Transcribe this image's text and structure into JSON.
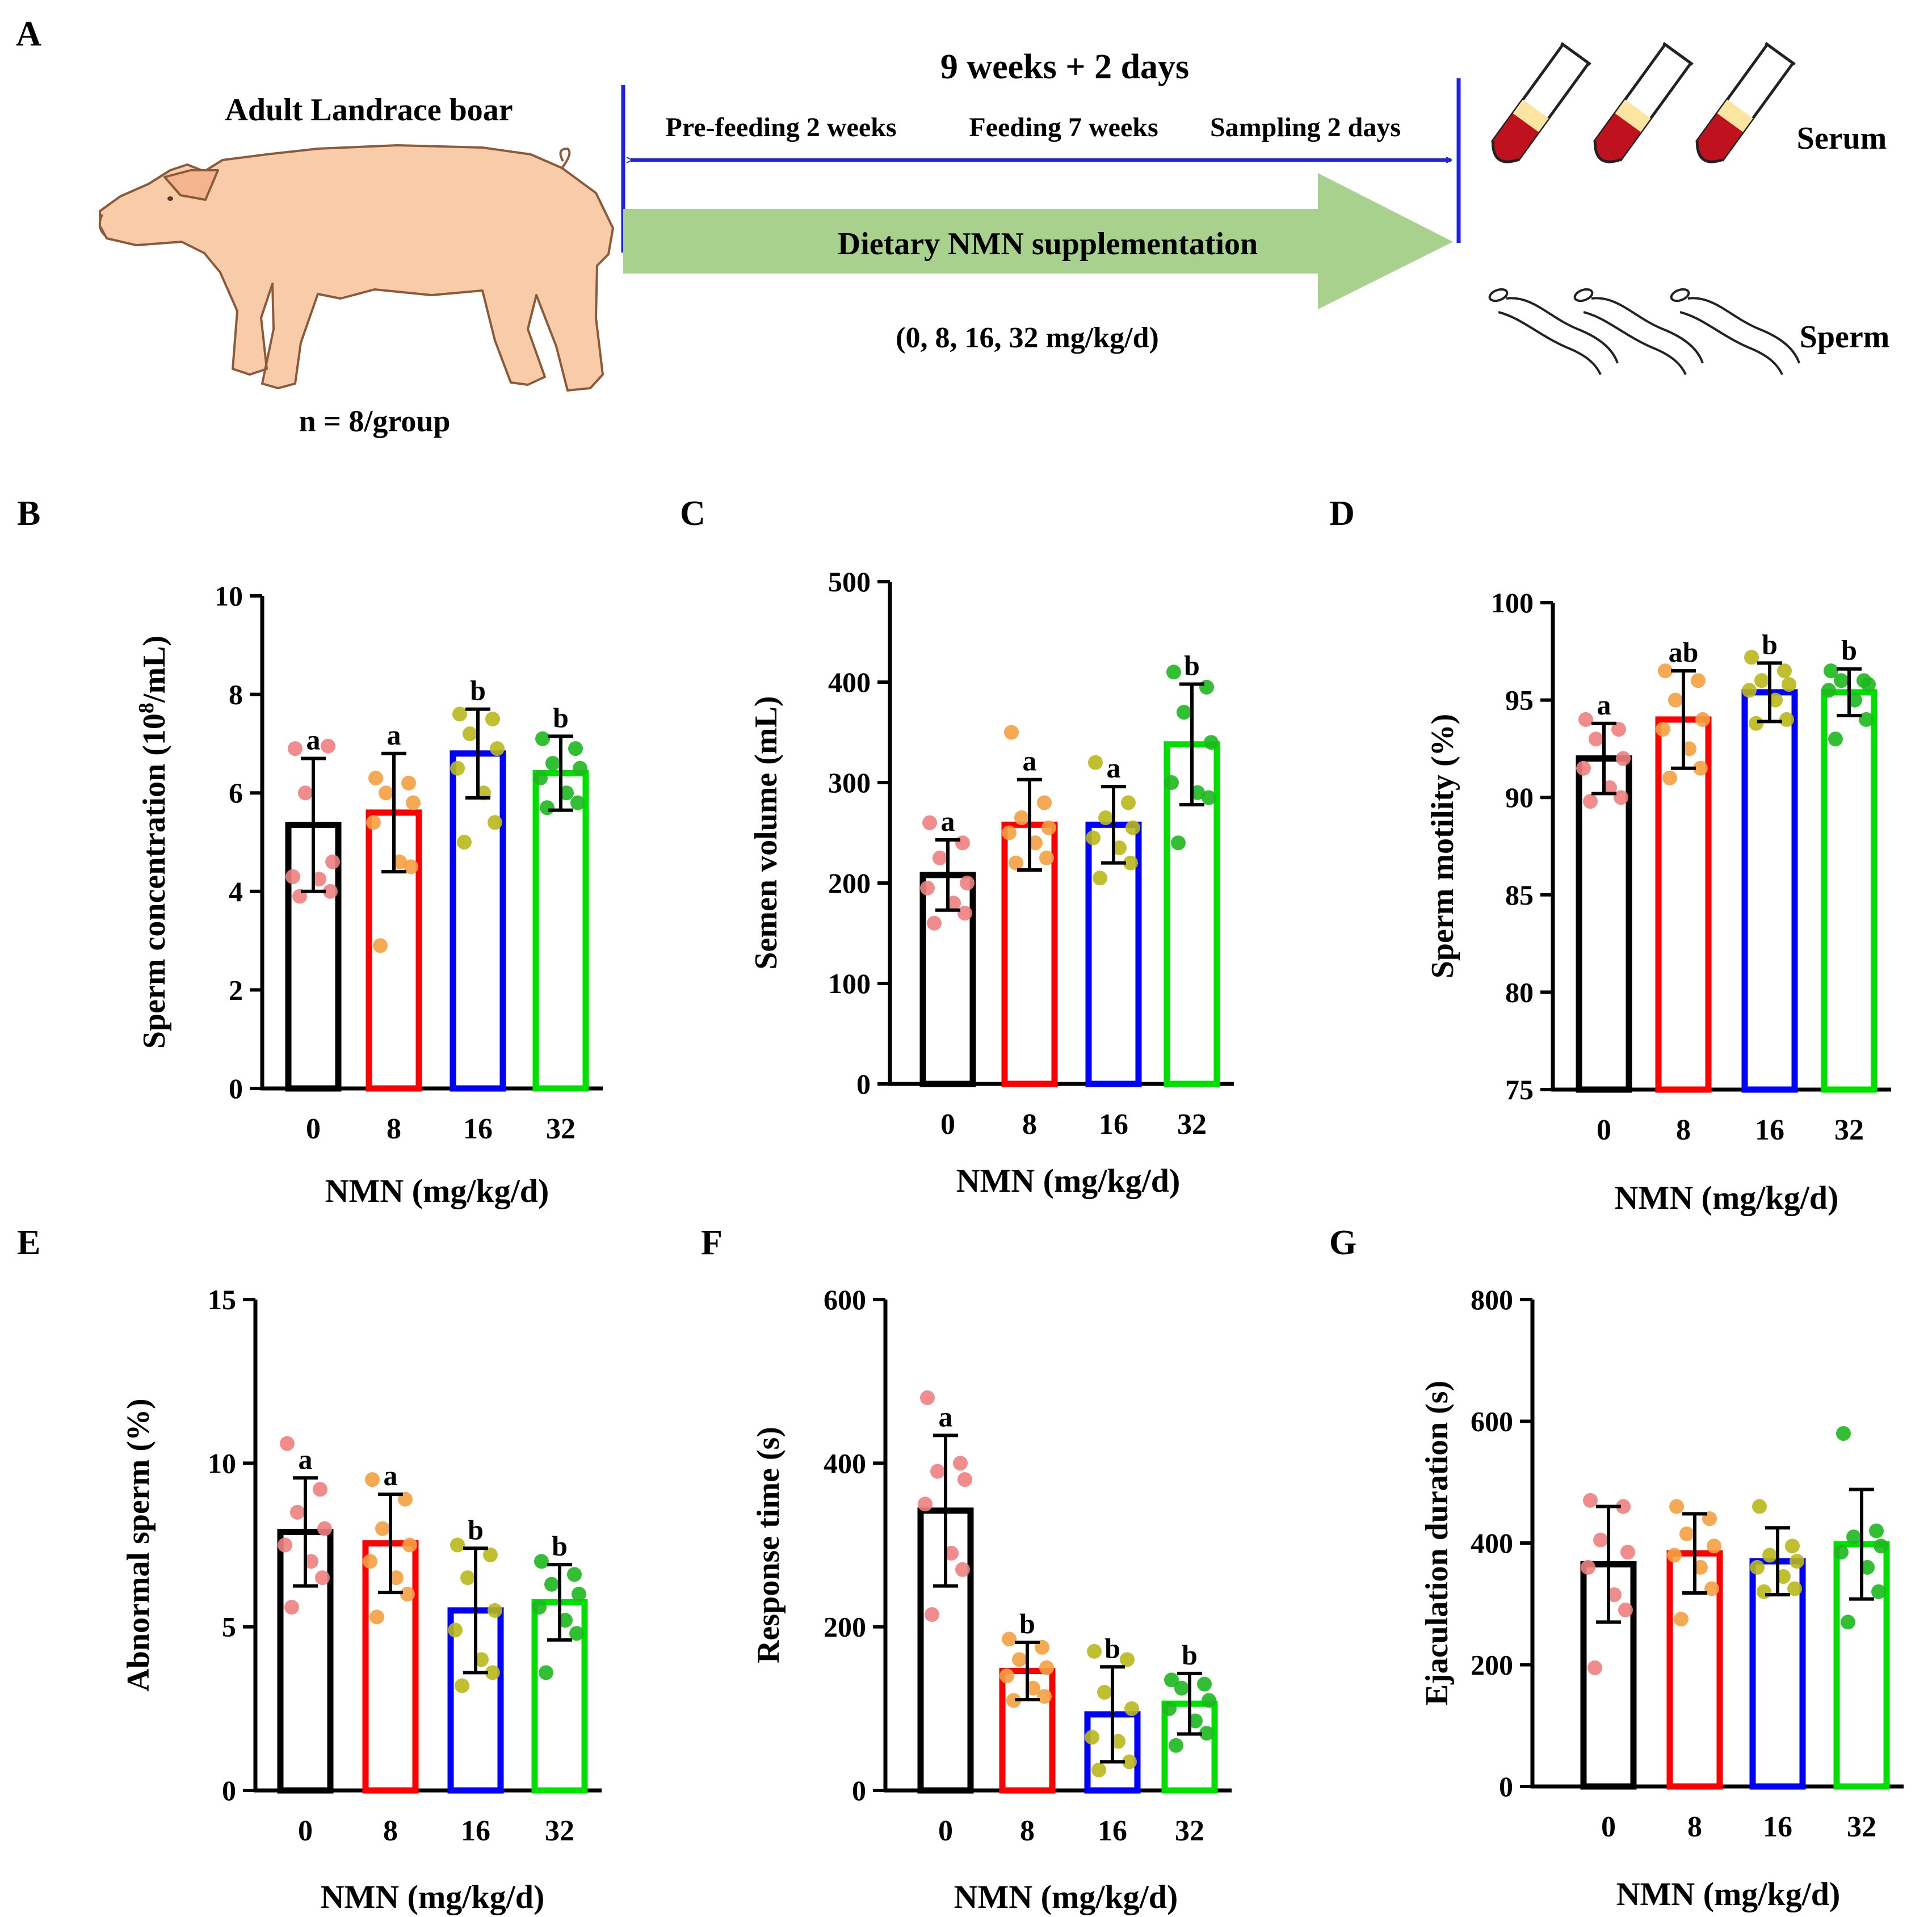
{
  "panel_a": {
    "label": "A",
    "animal_title": "Adult Landrace boar",
    "n_label": "n = 8/group",
    "duration": "9 weeks + 2 days",
    "phases": [
      "Pre-feeding 2 weeks",
      "Feeding 7 weeks",
      "Sampling 2 days"
    ],
    "arrow_label": "Dietary NMN supplementation",
    "doses": "(0, 8, 16, 32 mg/kg/d)",
    "sample_serum": "Serum",
    "sample_sperm": "Sperm",
    "colors": {
      "arrow_fill": "#a9d18e",
      "timeline": "#1e22e6",
      "pig": "#f8cba9",
      "serum": "#fbe5a0",
      "blood": "#c0111f"
    }
  },
  "chart_data": [
    {
      "id": "B",
      "type": "bar",
      "label": "B",
      "ylabel_pre": "Sperm concentration (10",
      "ylabel_sup": "8",
      "ylabel_post": "/mL)",
      "xlabel": "NMN (mg/kg/d)",
      "categories": [
        "0",
        "8",
        "16",
        "32"
      ],
      "ylim": [
        0,
        10
      ],
      "yticks": [
        0,
        2,
        4,
        6,
        8,
        10
      ],
      "tick_labels": [
        "0",
        "2",
        "4",
        "6",
        "8",
        "10"
      ],
      "means": [
        5.35,
        5.6,
        6.8,
        6.4
      ],
      "sd": [
        1.35,
        1.2,
        0.9,
        0.75
      ],
      "letters": [
        "a",
        "a",
        "b",
        "b"
      ],
      "points": [
        [
          6.9,
          6.95,
          6.0,
          4.6,
          4.3,
          4.25,
          4.0,
          3.9
        ],
        [
          6.3,
          6.2,
          6.0,
          5.8,
          5.4,
          4.6,
          4.5,
          2.9
        ],
        [
          7.6,
          7.5,
          7.2,
          6.9,
          6.5,
          6.0,
          5.4,
          5.0
        ],
        [
          7.1,
          6.9,
          6.6,
          6.5,
          6.3,
          6.0,
          5.8,
          5.7
        ]
      ],
      "bar_colors": [
        "#000000",
        "#ff0000",
        "#0000ff",
        "#00e000"
      ],
      "point_colors": [
        "#f08080",
        "#f5a040",
        "#b8b81a",
        "#1db81d"
      ]
    },
    {
      "id": "C",
      "type": "bar",
      "label": "C",
      "ylabel": "Semen volume (mL)",
      "xlabel": "NMN (mg/kg/d)",
      "categories": [
        "0",
        "8",
        "16",
        "32"
      ],
      "ylim": [
        0,
        500
      ],
      "yticks": [
        0,
        100,
        200,
        300,
        400,
        500
      ],
      "tick_labels": [
        "0",
        "100",
        "200",
        "300",
        "400",
        "500"
      ],
      "means": [
        208,
        258,
        258,
        338
      ],
      "sd": [
        35,
        45,
        38,
        60
      ],
      "letters": [
        "a",
        "a",
        "a",
        "b"
      ],
      "points": [
        [
          260,
          240,
          225,
          200,
          195,
          180,
          170,
          160
        ],
        [
          350,
          280,
          265,
          255,
          250,
          240,
          225,
          220
        ],
        [
          320,
          280,
          265,
          255,
          245,
          235,
          220,
          205
        ],
        [
          410,
          395,
          370,
          340,
          300,
          290,
          285,
          240
        ]
      ],
      "bar_colors": [
        "#000000",
        "#ff0000",
        "#0000ff",
        "#00e000"
      ],
      "point_colors": [
        "#f08080",
        "#f5a040",
        "#b8b81a",
        "#1db81d"
      ]
    },
    {
      "id": "D",
      "type": "bar",
      "label": "D",
      "ylabel": "Sperm motility (%)",
      "xlabel": "NMN (mg/kg/d)",
      "categories": [
        "0",
        "8",
        "16",
        "32"
      ],
      "ylim": [
        75,
        100
      ],
      "yticks": [
        75,
        80,
        85,
        90,
        95,
        100
      ],
      "tick_labels": [
        "75",
        "80",
        "85",
        "90",
        "95",
        "100"
      ],
      "means": [
        92,
        94,
        95.4,
        95.4
      ],
      "sd": [
        1.8,
        2.5,
        1.5,
        1.2
      ],
      "letters": [
        "a",
        "ab",
        "b",
        "b"
      ],
      "points": [
        [
          94,
          93.5,
          93,
          92,
          91.5,
          90.5,
          90,
          89.8
        ],
        [
          96.5,
          96,
          95,
          94,
          93.5,
          92.5,
          91.5,
          91
        ],
        [
          97.2,
          96.5,
          96,
          95.8,
          95.5,
          95,
          94,
          93.8
        ],
        [
          96.5,
          96,
          96,
          95.8,
          95.5,
          95,
          94,
          93
        ]
      ],
      "bar_colors": [
        "#000000",
        "#ff0000",
        "#0000ff",
        "#00e000"
      ],
      "point_colors": [
        "#f08080",
        "#f5a040",
        "#b8b81a",
        "#1db81d"
      ]
    },
    {
      "id": "E",
      "type": "bar",
      "label": "E",
      "ylabel": "Abnormal sperm (%)",
      "xlabel": "NMN (mg/kg/d)",
      "categories": [
        "0",
        "8",
        "16",
        "32"
      ],
      "ylim": [
        0,
        15
      ],
      "yticks": [
        0,
        5,
        10,
        15
      ],
      "tick_labels": [
        "0",
        "5",
        "10",
        "15"
      ],
      "means": [
        7.9,
        7.55,
        5.5,
        5.75
      ],
      "sd": [
        1.65,
        1.5,
        1.9,
        1.15
      ],
      "letters": [
        "a",
        "a",
        "b",
        "b"
      ],
      "points": [
        [
          10.6,
          9.2,
          8.5,
          8.0,
          7.5,
          7.0,
          6.5,
          5.6
        ],
        [
          9.5,
          8.9,
          8.0,
          7.5,
          7.0,
          6.5,
          6.0,
          5.3
        ],
        [
          7.5,
          7.2,
          6.5,
          5.5,
          4.9,
          4.0,
          3.6,
          3.2
        ],
        [
          7.0,
          6.6,
          6.3,
          6.0,
          5.6,
          5.2,
          4.8,
          3.6
        ]
      ],
      "bar_colors": [
        "#000000",
        "#ff0000",
        "#0000ff",
        "#00e000"
      ],
      "point_colors": [
        "#f08080",
        "#f5a040",
        "#b8b81a",
        "#1db81d"
      ]
    },
    {
      "id": "F",
      "type": "bar",
      "label": "F",
      "ylabel": "Response time (s)",
      "xlabel": "NMN (mg/kg/d)",
      "categories": [
        "0",
        "8",
        "16",
        "32"
      ],
      "ylim": [
        0,
        600
      ],
      "yticks": [
        0,
        200,
        400,
        600
      ],
      "tick_labels": [
        "0",
        "200",
        "400",
        "600"
      ],
      "means": [
        342,
        146,
        93,
        106
      ],
      "sd": [
        92,
        35,
        58,
        37
      ],
      "letters": [
        "a",
        "b",
        "b",
        "b"
      ],
      "points": [
        [
          480,
          400,
          390,
          380,
          350,
          290,
          270,
          215
        ],
        [
          185,
          175,
          160,
          150,
          140,
          125,
          115,
          110
        ],
        [
          170,
          160,
          120,
          100,
          65,
          60,
          35,
          25
        ],
        [
          135,
          130,
          125,
          110,
          100,
          85,
          70,
          55
        ]
      ],
      "bar_colors": [
        "#000000",
        "#ff0000",
        "#0000ff",
        "#00e000"
      ],
      "point_colors": [
        "#f08080",
        "#f5a040",
        "#b8b81a",
        "#1db81d"
      ]
    },
    {
      "id": "G",
      "type": "bar",
      "label": "G",
      "ylabel": "Ejaculation duration (s)",
      "xlabel": "NMN (mg/kg/d)",
      "categories": [
        "0",
        "8",
        "16",
        "32"
      ],
      "ylim": [
        0,
        800
      ],
      "yticks": [
        0,
        200,
        400,
        600,
        800
      ],
      "tick_labels": [
        "0",
        "200",
        "400",
        "600",
        "800"
      ],
      "means": [
        365,
        383,
        370,
        398
      ],
      "sd": [
        95,
        65,
        55,
        90
      ],
      "letters": [
        "",
        "",
        "",
        ""
      ],
      "points": [
        [
          470,
          460,
          405,
          385,
          360,
          315,
          290,
          195
        ],
        [
          460,
          440,
          415,
          395,
          380,
          360,
          325,
          275
        ],
        [
          460,
          395,
          380,
          370,
          360,
          345,
          325,
          320
        ],
        [
          580,
          420,
          410,
          395,
          385,
          360,
          320,
          270
        ]
      ],
      "bar_colors": [
        "#000000",
        "#ff0000",
        "#0000ff",
        "#00e000"
      ],
      "point_colors": [
        "#f08080",
        "#f5a040",
        "#b8b81a",
        "#1db81d"
      ]
    }
  ]
}
